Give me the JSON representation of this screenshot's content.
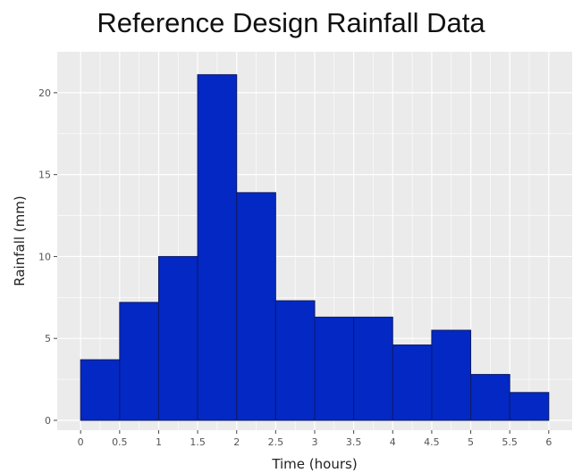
{
  "chart_data": {
    "type": "bar",
    "title": "Reference Design Rainfall Data",
    "xlabel": "Time (hours)",
    "ylabel": "Rainfall (mm)",
    "bin_edges": [
      0,
      0.5,
      1,
      1.5,
      2,
      2.5,
      3,
      3.5,
      4,
      4.5,
      5,
      5.5,
      6
    ],
    "values": [
      3.7,
      7.2,
      10.0,
      21.1,
      13.9,
      7.3,
      6.3,
      6.3,
      4.6,
      5.5,
      2.8,
      1.7
    ],
    "x_ticks": [
      "0",
      "0.5",
      "1",
      "1.5",
      "2",
      "2.5",
      "3",
      "3.5",
      "4",
      "4.5",
      "5",
      "5.5",
      "6"
    ],
    "y_ticks": [
      "0",
      "5",
      "10",
      "15",
      "20"
    ],
    "xlim": [
      -0.3,
      6.3
    ],
    "ylim": [
      -0.6,
      22.5
    ],
    "grid": true,
    "bar_color": "#0328c4",
    "bar_edge_color": "#0d1a66",
    "panel_color": "#ebebeb",
    "grid_color": "#ffffff"
  }
}
